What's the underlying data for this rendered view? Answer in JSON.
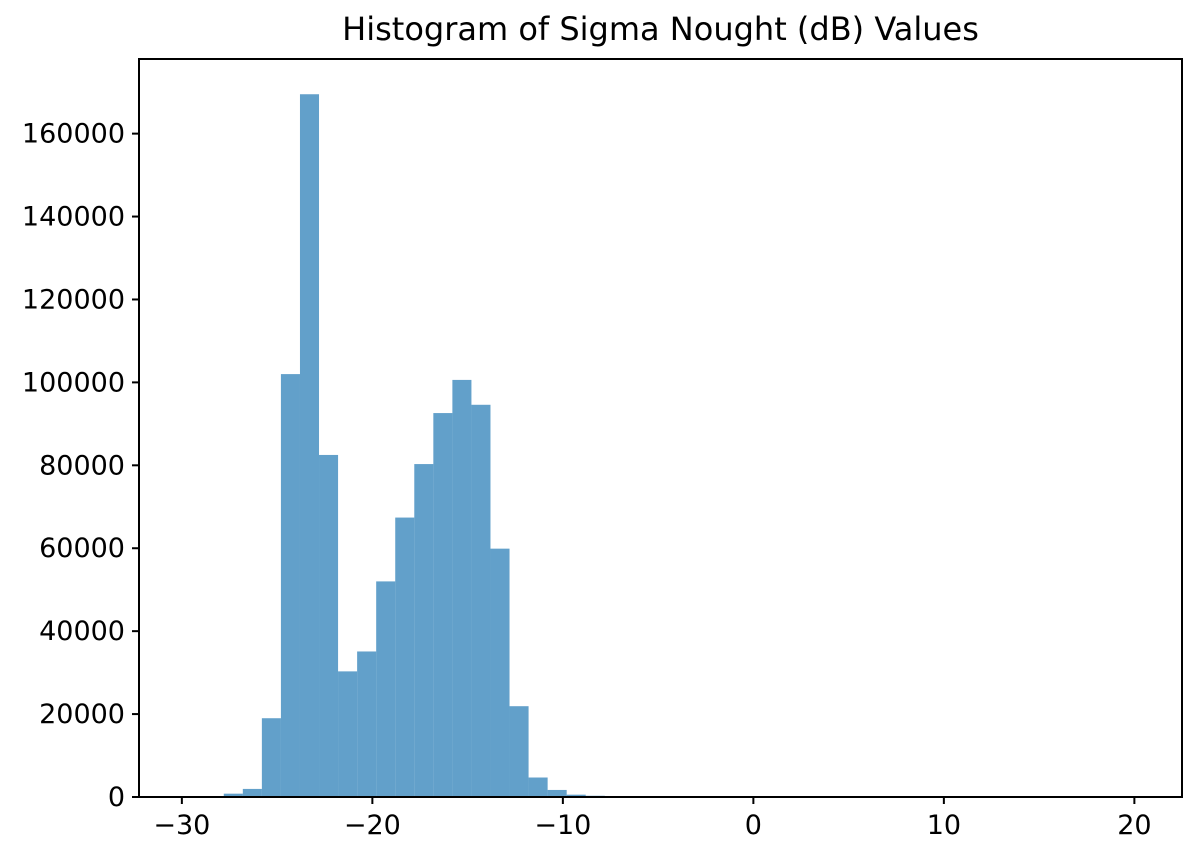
{
  "figure": {
    "background": "#ffffff"
  },
  "chart_data": {
    "type": "histogram",
    "title": "Histogram of Sigma Nought (dB) Values",
    "xlabel": "",
    "ylabel": "",
    "xlim": [
      -32.25,
      22.5
    ],
    "ylim": [
      0,
      178000
    ],
    "grid": false,
    "legend": false,
    "bar_color": "#1f77b4",
    "bar_alpha": 0.7,
    "frame_color": "#000000",
    "tick_label_color": "#000000",
    "bin_edges": [
      -27.8,
      -26.8,
      -25.8,
      -24.8,
      -23.8,
      -22.8,
      -21.8,
      -20.8,
      -19.8,
      -18.8,
      -17.8,
      -16.8,
      -15.8,
      -14.8,
      -13.8,
      -12.8,
      -11.8,
      -10.8,
      -9.8,
      -8.8,
      -7.8,
      -6.8,
      -5.8
    ],
    "counts": [
      800,
      1950,
      19000,
      102000,
      169500,
      82500,
      30300,
      35100,
      52000,
      67400,
      80300,
      92600,
      100600,
      94600,
      59900,
      21900,
      4700,
      1700,
      560,
      300,
      150,
      60
    ],
    "x_ticks": [
      {
        "value": -30,
        "label": "−30"
      },
      {
        "value": -20,
        "label": "−20"
      },
      {
        "value": -10,
        "label": "−10"
      },
      {
        "value": 0,
        "label": "0"
      },
      {
        "value": 10,
        "label": "10"
      },
      {
        "value": 20,
        "label": "20"
      }
    ],
    "y_ticks": [
      {
        "value": 0,
        "label": "0"
      },
      {
        "value": 20000,
        "label": "20000"
      },
      {
        "value": 40000,
        "label": "40000"
      },
      {
        "value": 60000,
        "label": "60000"
      },
      {
        "value": 80000,
        "label": "80000"
      },
      {
        "value": 100000,
        "label": "100000"
      },
      {
        "value": 120000,
        "label": "120000"
      },
      {
        "value": 140000,
        "label": "140000"
      },
      {
        "value": 160000,
        "label": "160000"
      }
    ]
  }
}
